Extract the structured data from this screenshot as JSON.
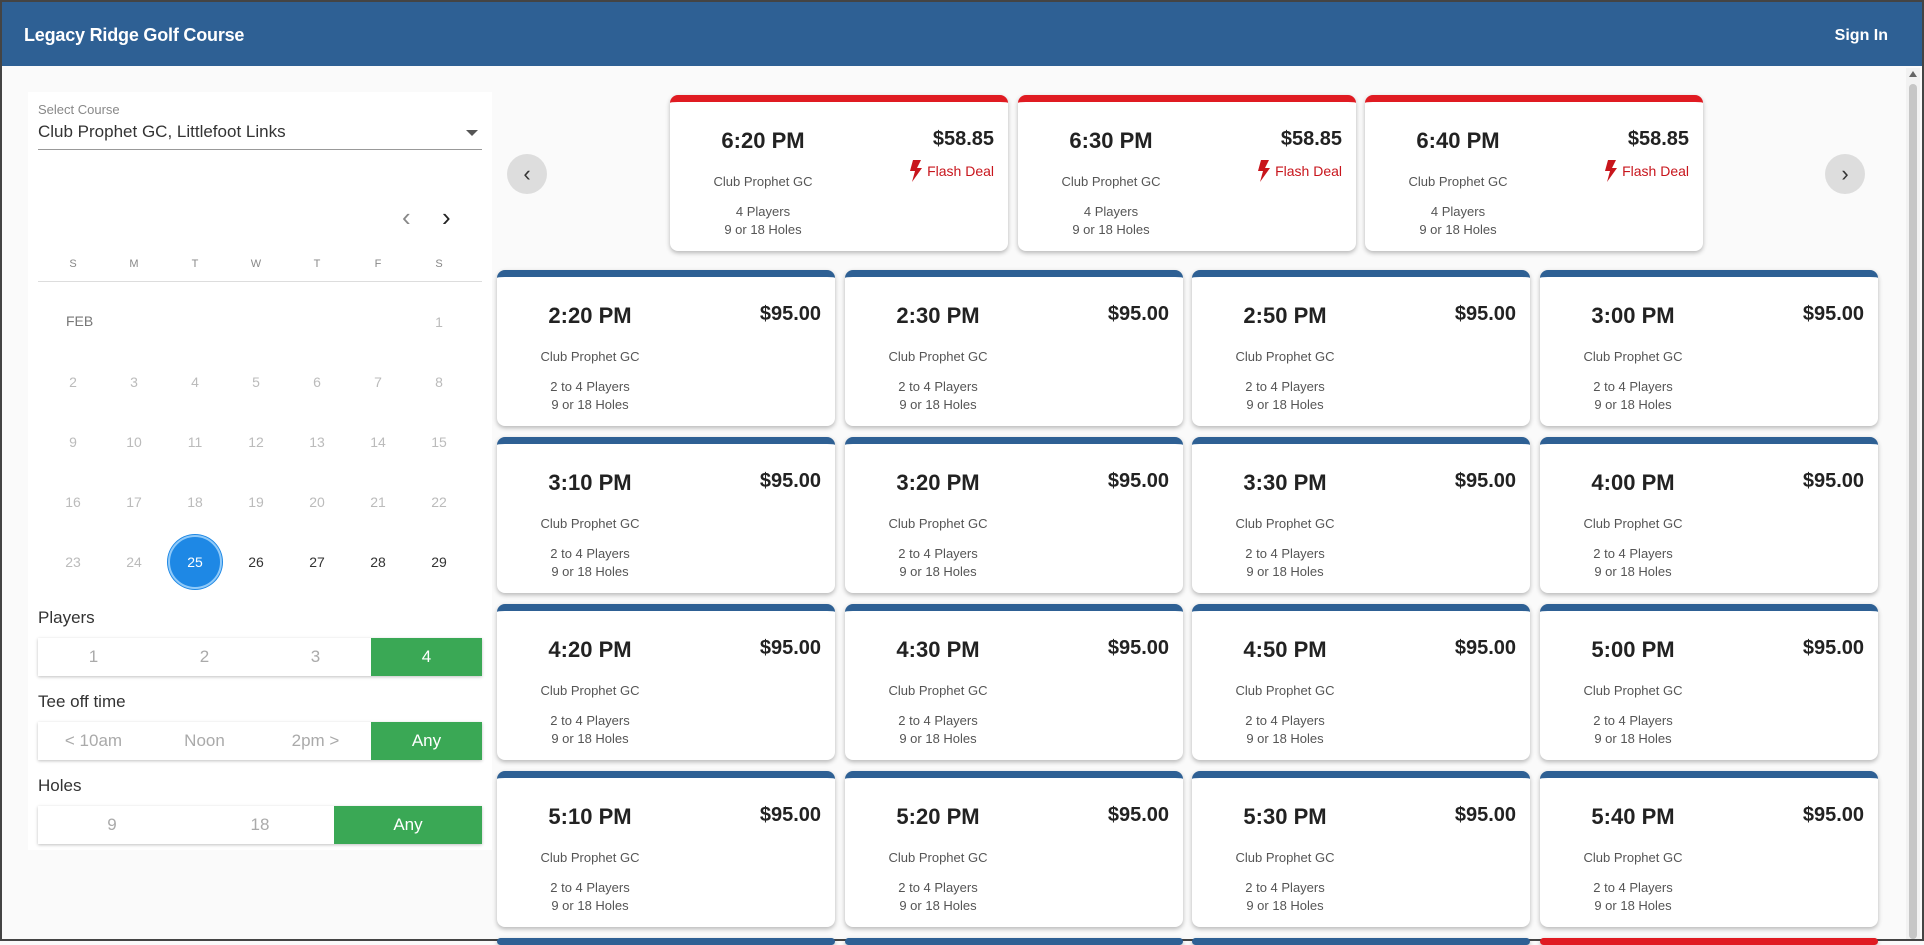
{
  "header": {
    "title": "Legacy Ridge Golf Course",
    "signin_label": "Sign In"
  },
  "filters": {
    "course_label": "Select Course",
    "course_value": "Club Prophet GC, Littlefoot Links",
    "calendar": {
      "prev_icon": "chevron-left-icon",
      "next_icon": "chevron-right-icon",
      "weekdays": [
        "S",
        "M",
        "T",
        "W",
        "T",
        "F",
        "S"
      ],
      "month": "FEB",
      "days": [
        "1",
        "2",
        "3",
        "4",
        "5",
        "6",
        "7",
        "8",
        "9",
        "10",
        "11",
        "12",
        "13",
        "14",
        "15",
        "16",
        "17",
        "18",
        "19",
        "20",
        "21",
        "22",
        "23",
        "24",
        "25",
        "26",
        "27",
        "28",
        "29"
      ],
      "selected_day": "25"
    },
    "players": {
      "label": "Players",
      "options": [
        "1",
        "2",
        "3",
        "4"
      ],
      "selected": "4"
    },
    "tee_time": {
      "label": "Tee off time",
      "options": [
        "< 10am",
        "Noon",
        "2pm >",
        "Any"
      ],
      "selected": "Any"
    },
    "holes": {
      "label": "Holes",
      "options": [
        "9",
        "18",
        "Any"
      ],
      "selected": "Any"
    }
  },
  "colors": {
    "header": "#2e6094",
    "selected": "#3aa855",
    "flash": "#e01b22",
    "calendar_selected": "#1e88e5"
  },
  "flash_deals": [
    {
      "time": "6:20 PM",
      "price": "$58.85",
      "course": "Club Prophet GC",
      "players": "4 Players",
      "holes": "9 or 18 Holes",
      "deal": "Flash Deal"
    },
    {
      "time": "6:30 PM",
      "price": "$58.85",
      "course": "Club Prophet GC",
      "players": "4 Players",
      "holes": "9 or 18 Holes",
      "deal": "Flash Deal"
    },
    {
      "time": "6:40 PM",
      "price": "$58.85",
      "course": "Club Prophet GC",
      "players": "4 Players",
      "holes": "9 or 18 Holes",
      "deal": "Flash Deal"
    }
  ],
  "tee_times": [
    {
      "time": "2:20 PM",
      "price": "$95.00",
      "course": "Club Prophet GC",
      "players": "2 to 4 Players",
      "holes": "9 or 18 Holes"
    },
    {
      "time": "2:30 PM",
      "price": "$95.00",
      "course": "Club Prophet GC",
      "players": "2 to 4 Players",
      "holes": "9 or 18 Holes"
    },
    {
      "time": "2:50 PM",
      "price": "$95.00",
      "course": "Club Prophet GC",
      "players": "2 to 4 Players",
      "holes": "9 or 18 Holes"
    },
    {
      "time": "3:00 PM",
      "price": "$95.00",
      "course": "Club Prophet GC",
      "players": "2 to 4 Players",
      "holes": "9 or 18 Holes"
    },
    {
      "time": "3:10 PM",
      "price": "$95.00",
      "course": "Club Prophet GC",
      "players": "2 to 4 Players",
      "holes": "9 or 18 Holes"
    },
    {
      "time": "3:20 PM",
      "price": "$95.00",
      "course": "Club Prophet GC",
      "players": "2 to 4 Players",
      "holes": "9 or 18 Holes"
    },
    {
      "time": "3:30 PM",
      "price": "$95.00",
      "course": "Club Prophet GC",
      "players": "2 to 4 Players",
      "holes": "9 or 18 Holes"
    },
    {
      "time": "4:00 PM",
      "price": "$95.00",
      "course": "Club Prophet GC",
      "players": "2 to 4 Players",
      "holes": "9 or 18 Holes"
    },
    {
      "time": "4:20 PM",
      "price": "$95.00",
      "course": "Club Prophet GC",
      "players": "2 to 4 Players",
      "holes": "9 or 18 Holes"
    },
    {
      "time": "4:30 PM",
      "price": "$95.00",
      "course": "Club Prophet GC",
      "players": "2 to 4 Players",
      "holes": "9 or 18 Holes"
    },
    {
      "time": "4:50 PM",
      "price": "$95.00",
      "course": "Club Prophet GC",
      "players": "2 to 4 Players",
      "holes": "9 or 18 Holes"
    },
    {
      "time": "5:00 PM",
      "price": "$95.00",
      "course": "Club Prophet GC",
      "players": "2 to 4 Players",
      "holes": "9 or 18 Holes"
    },
    {
      "time": "5:10 PM",
      "price": "$95.00",
      "course": "Club Prophet GC",
      "players": "2 to 4 Players",
      "holes": "9 or 18 Holes"
    },
    {
      "time": "5:20 PM",
      "price": "$95.00",
      "course": "Club Prophet GC",
      "players": "2 to 4 Players",
      "holes": "9 or 18 Holes"
    },
    {
      "time": "5:30 PM",
      "price": "$95.00",
      "course": "Club Prophet GC",
      "players": "2 to 4 Players",
      "holes": "9 or 18 Holes"
    },
    {
      "time": "5:40 PM",
      "price": "$95.00",
      "course": "Club Prophet GC",
      "players": "2 to 4 Players",
      "holes": "9 or 18 Holes"
    }
  ]
}
